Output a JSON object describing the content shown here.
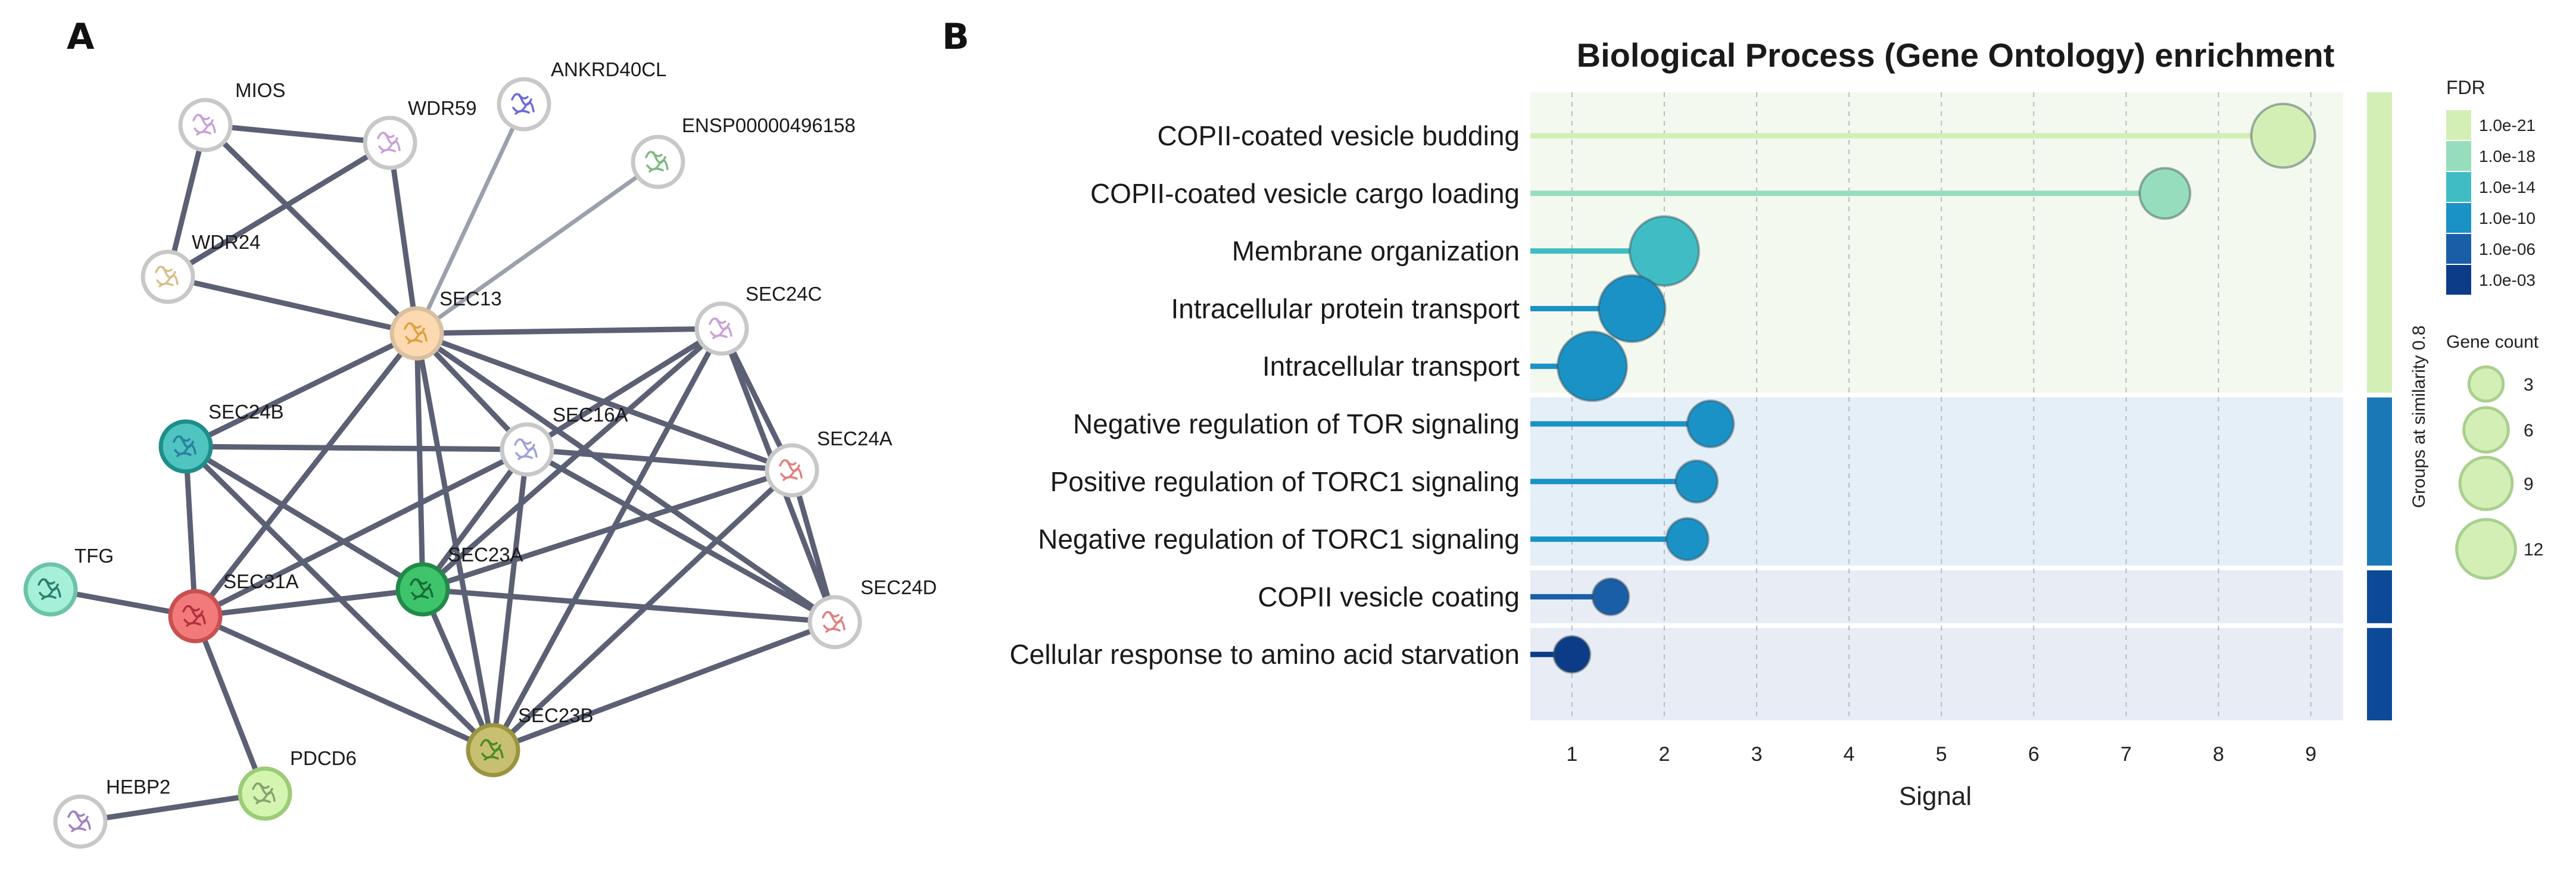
{
  "panel_a": {
    "letter": "A",
    "nodes": [
      {
        "id": "MIOS",
        "label": "MIOS",
        "color": "#ffffff",
        "border": "#c8c8c8",
        "protein_color": "#c9a0d8"
      },
      {
        "id": "WDR59",
        "label": "WDR59",
        "color": "#ffffff",
        "border": "#c8c8c8",
        "protein_color": "#c9a0d8"
      },
      {
        "id": "ANKRD40CL",
        "label": "ANKRD40CL",
        "color": "#ffffff",
        "border": "#c8c8c8",
        "protein_color": "#6a6adc"
      },
      {
        "id": "ENSP00000496158",
        "label": "ENSP00000496158",
        "color": "#ffffff",
        "border": "#c8c8c8",
        "protein_color": "#7fb87f"
      },
      {
        "id": "WDR24",
        "label": "WDR24",
        "color": "#ffffff",
        "border": "#c8c8c8",
        "protein_color": "#d8c08a"
      },
      {
        "id": "SEC13",
        "label": "SEC13",
        "color": "#fcd9b0",
        "border": "#d9c0a0",
        "protein_color": "#e0a040"
      },
      {
        "id": "SEC24C",
        "label": "SEC24C",
        "color": "#ffffff",
        "border": "#c8c8c8",
        "protein_color": "#c9a0d8"
      },
      {
        "id": "SEC24B",
        "label": "SEC24B",
        "color": "#4fc4c0",
        "border": "#1f8d8a",
        "protein_color": "#2a7fa0"
      },
      {
        "id": "SEC16A",
        "label": "SEC16A",
        "color": "#ffffff",
        "border": "#c8c8c8",
        "protein_color": "#a0a0dc"
      },
      {
        "id": "SEC24A",
        "label": "SEC24A",
        "color": "#ffffff",
        "border": "#c8c8c8",
        "protein_color": "#e08080"
      },
      {
        "id": "TFG",
        "label": "TFG",
        "color": "#a6efd8",
        "border": "#6cc4a8",
        "protein_color": "#2a7f70"
      },
      {
        "id": "SEC31A",
        "label": "SEC31A",
        "color": "#f37a7a",
        "border": "#c85050",
        "protein_color": "#b03040"
      },
      {
        "id": "SEC23A",
        "label": "SEC23A",
        "color": "#3ec46a",
        "border": "#228a48",
        "protein_color": "#1a6a3a"
      },
      {
        "id": "SEC24D",
        "label": "SEC24D",
        "color": "#ffffff",
        "border": "#c8c8c8",
        "protein_color": "#e08080"
      },
      {
        "id": "HEBP2",
        "label": "HEBP2",
        "color": "#ffffff",
        "border": "#c8c8c8",
        "protein_color": "#a080c0"
      },
      {
        "id": "PDCD6",
        "label": "PDCD6",
        "color": "#d4f5b0",
        "border": "#9ccc78",
        "protein_color": "#8aa070"
      },
      {
        "id": "SEC23B",
        "label": "SEC23B",
        "color": "#c8c070",
        "border": "#9a9440",
        "protein_color": "#4a8a2a"
      }
    ],
    "edges": [
      [
        "MIOS",
        "WDR59"
      ],
      [
        "MIOS",
        "WDR24"
      ],
      [
        "MIOS",
        "SEC13"
      ],
      [
        "WDR59",
        "WDR24"
      ],
      [
        "WDR59",
        "SEC13"
      ],
      [
        "WDR24",
        "SEC13"
      ],
      [
        "ANKRD40CL",
        "SEC13"
      ],
      [
        "ENSP00000496158",
        "SEC13"
      ],
      [
        "SEC13",
        "SEC24C"
      ],
      [
        "SEC13",
        "SEC24B"
      ],
      [
        "SEC13",
        "SEC16A"
      ],
      [
        "SEC13",
        "SEC24A"
      ],
      [
        "SEC13",
        "SEC31A"
      ],
      [
        "SEC13",
        "SEC23A"
      ],
      [
        "SEC13",
        "SEC24D"
      ],
      [
        "SEC13",
        "SEC23B"
      ],
      [
        "SEC24C",
        "SEC16A"
      ],
      [
        "SEC24C",
        "SEC24A"
      ],
      [
        "SEC24C",
        "SEC23A"
      ],
      [
        "SEC24C",
        "SEC23B"
      ],
      [
        "SEC24C",
        "SEC24D"
      ],
      [
        "SEC24B",
        "SEC16A"
      ],
      [
        "SEC24B",
        "SEC23A"
      ],
      [
        "SEC24B",
        "SEC31A"
      ],
      [
        "SEC24B",
        "SEC23B"
      ],
      [
        "SEC16A",
        "SEC24A"
      ],
      [
        "SEC16A",
        "SEC23A"
      ],
      [
        "SEC16A",
        "SEC31A"
      ],
      [
        "SEC16A",
        "SEC24D"
      ],
      [
        "SEC16A",
        "SEC23B"
      ],
      [
        "SEC24A",
        "SEC23A"
      ],
      [
        "SEC24A",
        "SEC24D"
      ],
      [
        "SEC24A",
        "SEC23B"
      ],
      [
        "TFG",
        "SEC31A"
      ],
      [
        "SEC31A",
        "SEC23A"
      ],
      [
        "SEC31A",
        "SEC23B"
      ],
      [
        "SEC31A",
        "PDCD6"
      ],
      [
        "SEC23A",
        "SEC24D"
      ],
      [
        "SEC23A",
        "SEC23B"
      ],
      [
        "SEC24D",
        "SEC23B"
      ],
      [
        "HEBP2",
        "PDCD6"
      ]
    ]
  },
  "panel_b": {
    "letter": "B"
  },
  "chart_data": {
    "type": "lollipop",
    "title": "Biological Process (Gene Ontology) enrichment",
    "xlabel": "Signal",
    "xlim": [
      0.55,
      9.35
    ],
    "xticks": [
      1,
      2,
      3,
      4,
      5,
      6,
      7,
      8,
      9
    ],
    "grid": true,
    "terms": [
      {
        "term": "COPII-coated vesicle budding",
        "signal": 8.7,
        "fdr": "1.0e-21",
        "gene_count": 9,
        "group": 0
      },
      {
        "term": "COPII-coated vesicle cargo loading",
        "signal": 7.42,
        "fdr": "1.0e-18",
        "gene_count": 5,
        "group": 0
      },
      {
        "term": "Membrane organization",
        "signal": 2.0,
        "fdr": "1.0e-14",
        "gene_count": 11,
        "group": 0
      },
      {
        "term": "Intracellular protein transport",
        "signal": 1.65,
        "fdr": "1.0e-10",
        "gene_count": 10,
        "group": 0
      },
      {
        "term": "Intracellular transport",
        "signal": 1.22,
        "fdr": "1.0e-10",
        "gene_count": 11,
        "group": 0
      },
      {
        "term": "Negative regulation of TOR signaling",
        "signal": 2.5,
        "fdr": "1.0e-10",
        "gene_count": 4,
        "group": 1
      },
      {
        "term": "Positive regulation of TORC1 signaling",
        "signal": 2.35,
        "fdr": "1.0e-10",
        "gene_count": 3,
        "group": 1
      },
      {
        "term": "Negative regulation of TORC1 signaling",
        "signal": 2.25,
        "fdr": "1.0e-10",
        "gene_count": 3,
        "group": 1
      },
      {
        "term": "COPII vesicle coating",
        "signal": 1.42,
        "fdr": "1.0e-06",
        "gene_count": 2,
        "group": 2
      },
      {
        "term": "Cellular response to amino acid starvation",
        "signal": 1.0,
        "fdr": "1.0e-03",
        "gene_count": 2,
        "group": 3
      }
    ],
    "groups": [
      {
        "bg": "#f3f9ee",
        "bar": "#d3efb6"
      },
      {
        "bg": "#e5eff8",
        "bar": "#1b78b7"
      },
      {
        "bg": "#e7ecf5",
        "bar": "#0c4a98"
      },
      {
        "bg": "#e7ecf5",
        "bar": "#0c4a98"
      }
    ],
    "group_axis_label": "Groups at similarity 0.8",
    "fdr_legend": {
      "title": "FDR",
      "levels": [
        {
          "label": "1.0e-21",
          "color": "#d3efb6"
        },
        {
          "label": "1.0e-18",
          "color": "#96ddbb"
        },
        {
          "label": "1.0e-14",
          "color": "#40bdc4"
        },
        {
          "label": "1.0e-10",
          "color": "#1a92c6"
        },
        {
          "label": "1.0e-06",
          "color": "#1a5ea8"
        },
        {
          "label": "1.0e-03",
          "color": "#0c3c88"
        }
      ]
    },
    "gene_count_legend": {
      "title": "Gene count",
      "sizes": [
        3,
        6,
        9,
        12
      ],
      "fill": "#d3efb6",
      "stroke": "#a9cf8e"
    }
  }
}
